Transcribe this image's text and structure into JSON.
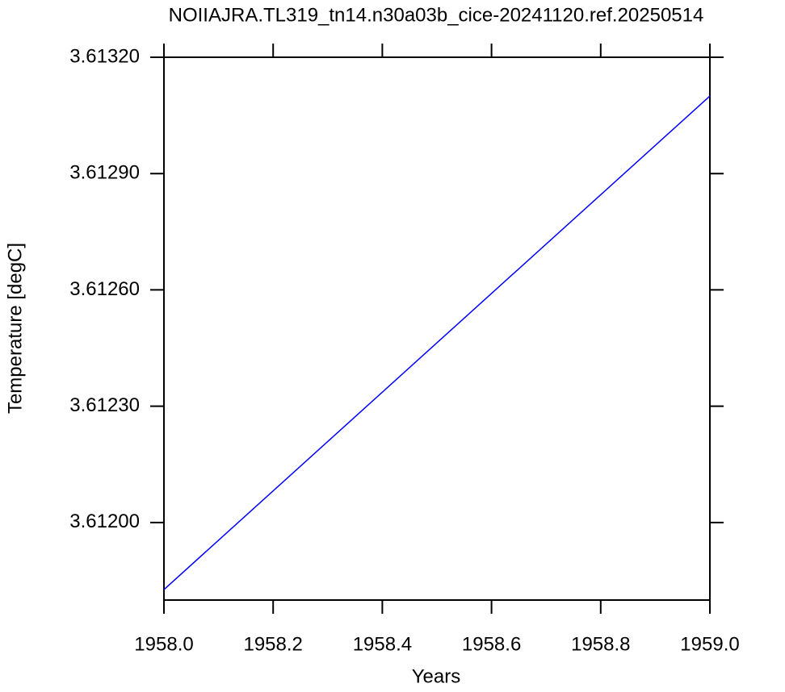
{
  "chart_data": {
    "type": "line",
    "title": "NOIIAJRA.TL319_tn14.n30a03b_cice-20241120.ref.20250514",
    "x_label": "Years",
    "y_label": "Temperature [degC]",
    "x": [
      1958.0,
      1959.0
    ],
    "series": [
      {
        "color": "#0000ff",
        "values": [
          3.611827,
          3.6131
        ]
      }
    ],
    "xlim": [
      1958.0,
      1959.0
    ],
    "xticks": [
      {
        "value": 1958.0,
        "label": "1958.0"
      },
      {
        "value": 1958.2,
        "label": "1958.2"
      },
      {
        "value": 1958.4,
        "label": "1958.4"
      },
      {
        "value": 1958.6,
        "label": "1958.6"
      },
      {
        "value": 1958.8,
        "label": "1958.8"
      },
      {
        "value": 1959.0,
        "label": "1959.0"
      }
    ],
    "ylim": [
      3.6118,
      3.6132
    ],
    "yticks": [
      {
        "value": 3.612,
        "label": "3.61200"
      },
      {
        "value": 3.6123,
        "label": "3.61230"
      },
      {
        "value": 3.6126,
        "label": "3.61260"
      },
      {
        "value": 3.6129,
        "label": "3.61290"
      },
      {
        "value": 3.6132,
        "label": "3.61320"
      }
    ],
    "grid": false
  }
}
